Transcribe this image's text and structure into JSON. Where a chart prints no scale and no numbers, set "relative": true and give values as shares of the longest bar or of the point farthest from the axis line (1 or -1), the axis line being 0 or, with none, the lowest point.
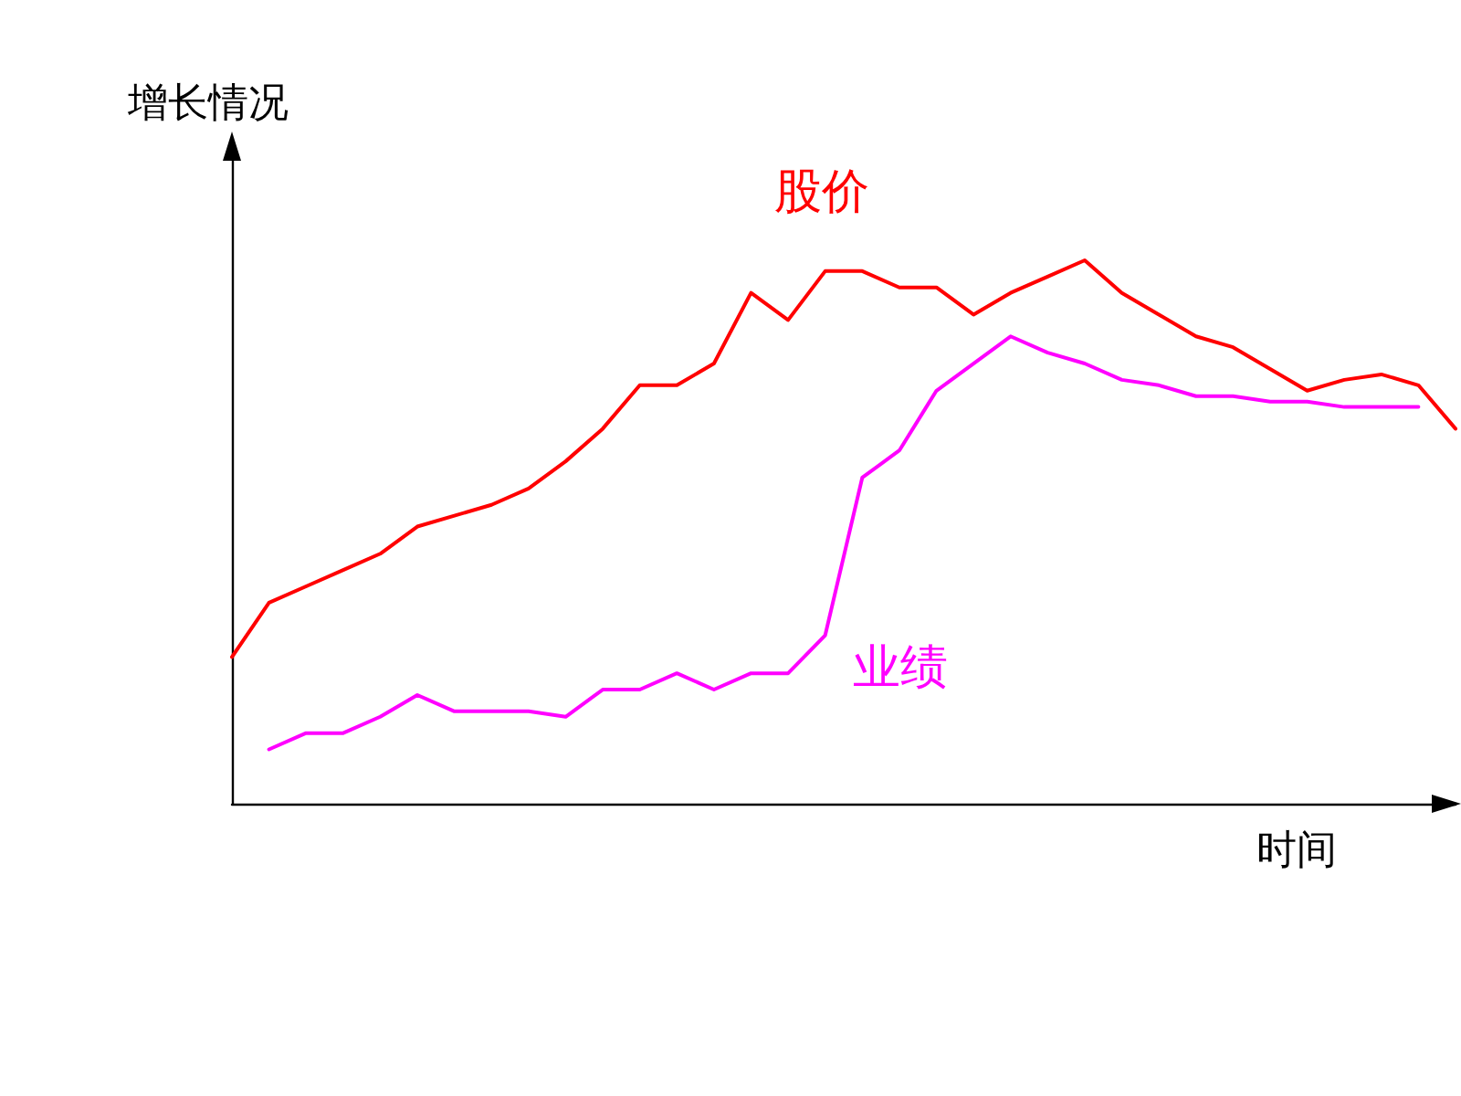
{
  "chart_data": {
    "type": "line",
    "relative": true,
    "xlabel": "时间",
    "ylabel": "增长情况",
    "legend": false,
    "grid": false,
    "marker": "none",
    "line_style": "solid",
    "categories": [
      null,
      null,
      null,
      null,
      null,
      null,
      null,
      null,
      null,
      null,
      null,
      null,
      null,
      null,
      null,
      null,
      null,
      null,
      null,
      null,
      null,
      null,
      null,
      null,
      null,
      null,
      null,
      null,
      null,
      null,
      null,
      null,
      null,
      null
    ],
    "series": [
      {
        "name": "股价",
        "color": "#ff0000",
        "values": [
          0.27,
          0.37,
          0.4,
          0.43,
          0.46,
          0.51,
          0.53,
          0.55,
          0.58,
          0.63,
          0.69,
          0.77,
          0.77,
          0.81,
          0.94,
          0.89,
          0.98,
          0.98,
          0.95,
          0.95,
          0.9,
          0.94,
          0.97,
          1,
          0.94,
          0.9,
          0.86,
          0.84,
          0.8,
          0.76,
          0.78,
          0.79,
          0.77,
          0.69
        ]
      },
      {
        "name": "业绩",
        "color": "#ff00ff",
        "values": [
          null,
          0.1,
          0.13,
          0.13,
          0.16,
          0.2,
          0.17,
          0.17,
          0.17,
          0.16,
          0.21,
          0.21,
          0.24,
          0.21,
          0.24,
          0.24,
          0.31,
          0.6,
          0.65,
          0.76,
          0.81,
          0.86,
          0.83,
          0.81,
          0.78,
          0.77,
          0.75,
          0.75,
          0.74,
          0.74,
          0.73,
          0.73,
          0.73,
          null
        ]
      }
    ]
  }
}
